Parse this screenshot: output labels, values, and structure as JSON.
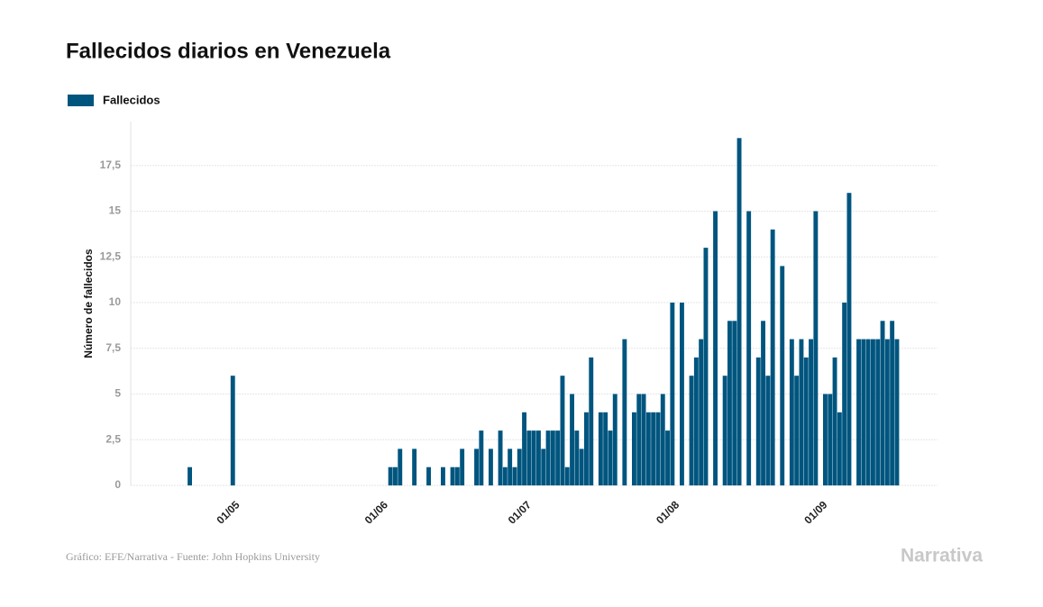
{
  "chart_data": {
    "type": "bar",
    "title": "Fallecidos diarios en Venezuela",
    "y_label": "Número de fallecidos",
    "source": "Gráfico: EFE/Narrativa - Fuente: John Hopkins University",
    "logo": "Narrativa",
    "legend": "top-left",
    "grid": true,
    "ylim": [
      0,
      20
    ],
    "yticks": [
      0,
      {
        "value": 2.5,
        "label": "2,5"
      },
      5,
      {
        "value": 7.5,
        "label": "7,5"
      },
      10,
      {
        "value": 12.5,
        "label": "12,5"
      },
      15,
      {
        "value": 17.5,
        "label": "17,5"
      }
    ],
    "categories": [
      null,
      null,
      null,
      null,
      null,
      null,
      null,
      null,
      null,
      null,
      null,
      null,
      null,
      null,
      "01/05",
      null,
      null,
      null,
      null,
      null,
      null,
      null,
      null,
      null,
      null,
      null,
      null,
      null,
      null,
      null,
      null,
      null,
      null,
      null,
      null,
      null,
      null,
      null,
      null,
      null,
      null,
      null,
      null,
      null,
      null,
      "01/06",
      null,
      null,
      null,
      null,
      null,
      null,
      null,
      null,
      null,
      null,
      null,
      null,
      null,
      null,
      null,
      null,
      null,
      null,
      null,
      null,
      null,
      null,
      null,
      null,
      null,
      null,
      null,
      null,
      null,
      "01/07",
      null,
      null,
      null,
      null,
      null,
      null,
      null,
      null,
      null,
      null,
      null,
      null,
      null,
      null,
      null,
      null,
      null,
      null,
      null,
      null,
      null,
      null,
      null,
      null,
      null,
      null,
      null,
      null,
      null,
      null,
      "01/08",
      null,
      null,
      null,
      null,
      null,
      null,
      null,
      null,
      null,
      null,
      null,
      null,
      null,
      null,
      null,
      null,
      null,
      null,
      null,
      null,
      null,
      null,
      null,
      null,
      null,
      null,
      null,
      null,
      null,
      null,
      "01/09",
      null,
      null,
      null,
      null,
      null,
      null,
      null,
      null,
      null,
      null,
      null,
      null,
      null,
      null,
      null,
      null
    ],
    "series": [
      {
        "name": "Fallecidos",
        "color": "#00557f",
        "values": [
          0,
          0,
          0,
          0,
          0,
          1,
          0,
          0,
          0,
          0,
          0,
          0,
          0,
          0,
          6,
          0,
          0,
          0,
          0,
          0,
          0,
          0,
          0,
          0,
          0,
          0,
          0,
          0,
          0,
          0,
          0,
          0,
          0,
          0,
          0,
          0,
          0,
          0,
          0,
          0,
          0,
          0,
          0,
          0,
          0,
          0,
          0,
          1,
          1,
          2,
          0,
          0,
          2,
          0,
          0,
          1,
          0,
          0,
          1,
          0,
          1,
          1,
          2,
          0,
          0,
          2,
          3,
          0,
          2,
          0,
          3,
          1,
          2,
          1,
          2,
          4,
          3,
          3,
          3,
          2,
          3,
          3,
          3,
          6,
          1,
          5,
          3,
          2,
          4,
          7,
          0,
          4,
          4,
          3,
          5,
          0,
          8,
          0,
          4,
          5,
          5,
          4,
          4,
          4,
          5,
          3,
          10,
          0,
          10,
          0,
          6,
          7,
          8,
          13,
          0,
          15,
          0,
          6,
          9,
          9,
          19,
          0,
          15,
          0,
          7,
          9,
          6,
          14,
          0,
          12,
          0,
          8,
          6,
          8,
          7,
          8,
          15,
          0,
          5,
          5,
          7,
          4,
          10,
          16,
          0,
          8,
          8,
          8,
          8,
          8,
          9,
          8,
          9,
          8
        ]
      }
    ]
  }
}
